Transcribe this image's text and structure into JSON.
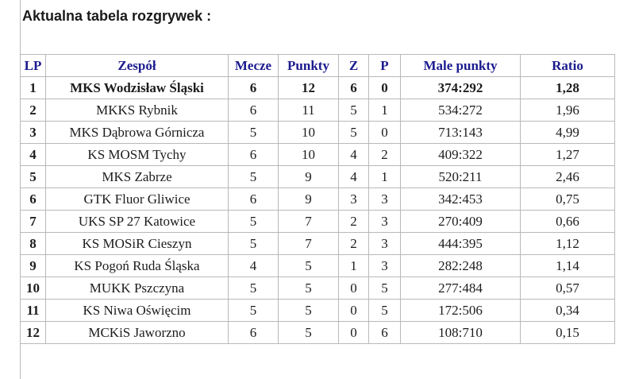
{
  "page": {
    "title": "Aktualna tabela rozgrywek :"
  },
  "colors": {
    "header_text": "#1b1b8e",
    "grid_line": "#b9b9b9",
    "body_text": "#1c1c1c",
    "title_text": "#1a1a1a"
  },
  "table": {
    "columns": [
      {
        "key": "lp",
        "label": "LP"
      },
      {
        "key": "team",
        "label": "Zespół"
      },
      {
        "key": "mecze",
        "label": "Mecze"
      },
      {
        "key": "punkty",
        "label": "Punkty"
      },
      {
        "key": "z",
        "label": "Z"
      },
      {
        "key": "p",
        "label": "P"
      },
      {
        "key": "male_punkty",
        "label": "Male punkty"
      },
      {
        "key": "ratio",
        "label": "Ratio"
      }
    ],
    "rows": [
      {
        "lp": "1",
        "team": "MKS Wodzisław Śląski",
        "mecze": "6",
        "punkty": "12",
        "z": "6",
        "p": "0",
        "male_punkty": "374:292",
        "ratio": "1,28",
        "leader": true
      },
      {
        "lp": "2",
        "team": "MKKS Rybnik",
        "mecze": "6",
        "punkty": "11",
        "z": "5",
        "p": "1",
        "male_punkty": "534:272",
        "ratio": "1,96",
        "leader": false
      },
      {
        "lp": "3",
        "team": "MKS Dąbrowa Górnicza",
        "mecze": "5",
        "punkty": "10",
        "z": "5",
        "p": "0",
        "male_punkty": "713:143",
        "ratio": "4,99",
        "leader": false
      },
      {
        "lp": "4",
        "team": "KS MOSM Tychy",
        "mecze": "6",
        "punkty": "10",
        "z": "4",
        "p": "2",
        "male_punkty": "409:322",
        "ratio": "1,27",
        "leader": false
      },
      {
        "lp": "5",
        "team": "MKS Zabrze",
        "mecze": "5",
        "punkty": "9",
        "z": "4",
        "p": "1",
        "male_punkty": "520:211",
        "ratio": "2,46",
        "leader": false
      },
      {
        "lp": "6",
        "team": "GTK Fluor Gliwice",
        "mecze": "6",
        "punkty": "9",
        "z": "3",
        "p": "3",
        "male_punkty": "342:453",
        "ratio": "0,75",
        "leader": false
      },
      {
        "lp": "7",
        "team": "UKS SP 27 Katowice",
        "mecze": "5",
        "punkty": "7",
        "z": "2",
        "p": "3",
        "male_punkty": "270:409",
        "ratio": "0,66",
        "leader": false
      },
      {
        "lp": "8",
        "team": "KS MOSiR Cieszyn",
        "mecze": "5",
        "punkty": "7",
        "z": "2",
        "p": "3",
        "male_punkty": "444:395",
        "ratio": "1,12",
        "leader": false
      },
      {
        "lp": "9",
        "team": "KS Pogoń Ruda Śląska",
        "mecze": "4",
        "punkty": "5",
        "z": "1",
        "p": "3",
        "male_punkty": "282:248",
        "ratio": "1,14",
        "leader": false
      },
      {
        "lp": "10",
        "team": "MUKK Pszczyna",
        "mecze": "5",
        "punkty": "5",
        "z": "0",
        "p": "5",
        "male_punkty": "277:484",
        "ratio": "0,57",
        "leader": false
      },
      {
        "lp": "11",
        "team": "KS Niwa Oświęcim",
        "mecze": "5",
        "punkty": "5",
        "z": "0",
        "p": "5",
        "male_punkty": "172:506",
        "ratio": "0,34",
        "leader": false
      },
      {
        "lp": "12",
        "team": "MCKiS Jaworzno",
        "mecze": "6",
        "punkty": "5",
        "z": "0",
        "p": "6",
        "male_punkty": "108:710",
        "ratio": "0,15",
        "leader": false
      }
    ]
  }
}
